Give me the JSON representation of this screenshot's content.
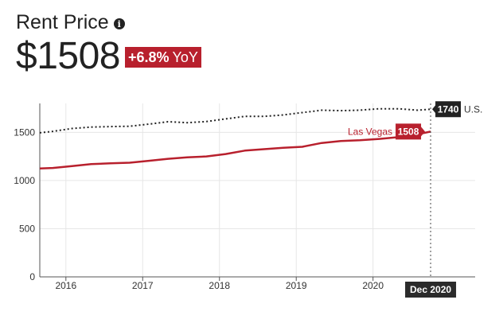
{
  "header": {
    "title": "Rent Price",
    "info_icon": "info-icon",
    "price": "$1508",
    "change": "+6.8%",
    "change_suffix": "YoY"
  },
  "colors": {
    "accent": "#b8202d",
    "us_line": "#222222",
    "grid": "#e6e6e6"
  },
  "chart_data": {
    "type": "line",
    "title": "",
    "xlabel": "",
    "ylabel": "",
    "x_ticks": [
      "2016",
      "2017",
      "2018",
      "2019",
      "2020"
    ],
    "y_ticks": [
      0,
      500,
      1000,
      1500
    ],
    "ylim": [
      0,
      1800
    ],
    "grid": true,
    "cursor_label": "Dec 2020",
    "series": [
      {
        "name": "U.S.",
        "style": "dotted",
        "color": "#222222",
        "end_value": 1740,
        "points": [
          {
            "x": 2015.83,
            "y": 1495
          },
          {
            "x": 2016.0,
            "y": 1510
          },
          {
            "x": 2016.25,
            "y": 1540
          },
          {
            "x": 2016.5,
            "y": 1555
          },
          {
            "x": 2016.75,
            "y": 1560
          },
          {
            "x": 2017.0,
            "y": 1563
          },
          {
            "x": 2017.25,
            "y": 1585
          },
          {
            "x": 2017.5,
            "y": 1610
          },
          {
            "x": 2017.75,
            "y": 1600
          },
          {
            "x": 2018.0,
            "y": 1612
          },
          {
            "x": 2018.25,
            "y": 1640
          },
          {
            "x": 2018.5,
            "y": 1665
          },
          {
            "x": 2018.75,
            "y": 1665
          },
          {
            "x": 2019.0,
            "y": 1680
          },
          {
            "x": 2019.25,
            "y": 1705
          },
          {
            "x": 2019.5,
            "y": 1730
          },
          {
            "x": 2019.75,
            "y": 1725
          },
          {
            "x": 2020.0,
            "y": 1730
          },
          {
            "x": 2020.25,
            "y": 1745
          },
          {
            "x": 2020.5,
            "y": 1745
          },
          {
            "x": 2020.75,
            "y": 1730
          },
          {
            "x": 2020.92,
            "y": 1740
          }
        ]
      },
      {
        "name": "Las Vegas",
        "style": "solid",
        "color": "#b8202d",
        "end_value": 1508,
        "points": [
          {
            "x": 2015.83,
            "y": 1125
          },
          {
            "x": 2016.0,
            "y": 1130
          },
          {
            "x": 2016.25,
            "y": 1150
          },
          {
            "x": 2016.5,
            "y": 1170
          },
          {
            "x": 2016.75,
            "y": 1178
          },
          {
            "x": 2017.0,
            "y": 1185
          },
          {
            "x": 2017.25,
            "y": 1205
          },
          {
            "x": 2017.5,
            "y": 1225
          },
          {
            "x": 2017.75,
            "y": 1240
          },
          {
            "x": 2018.0,
            "y": 1250
          },
          {
            "x": 2018.25,
            "y": 1275
          },
          {
            "x": 2018.5,
            "y": 1310
          },
          {
            "x": 2018.75,
            "y": 1325
          },
          {
            "x": 2019.0,
            "y": 1340
          },
          {
            "x": 2019.25,
            "y": 1350
          },
          {
            "x": 2019.5,
            "y": 1390
          },
          {
            "x": 2019.75,
            "y": 1410
          },
          {
            "x": 2020.0,
            "y": 1418
          },
          {
            "x": 2020.25,
            "y": 1432
          },
          {
            "x": 2020.5,
            "y": 1450
          },
          {
            "x": 2020.75,
            "y": 1480
          },
          {
            "x": 2020.92,
            "y": 1508
          }
        ]
      }
    ]
  }
}
